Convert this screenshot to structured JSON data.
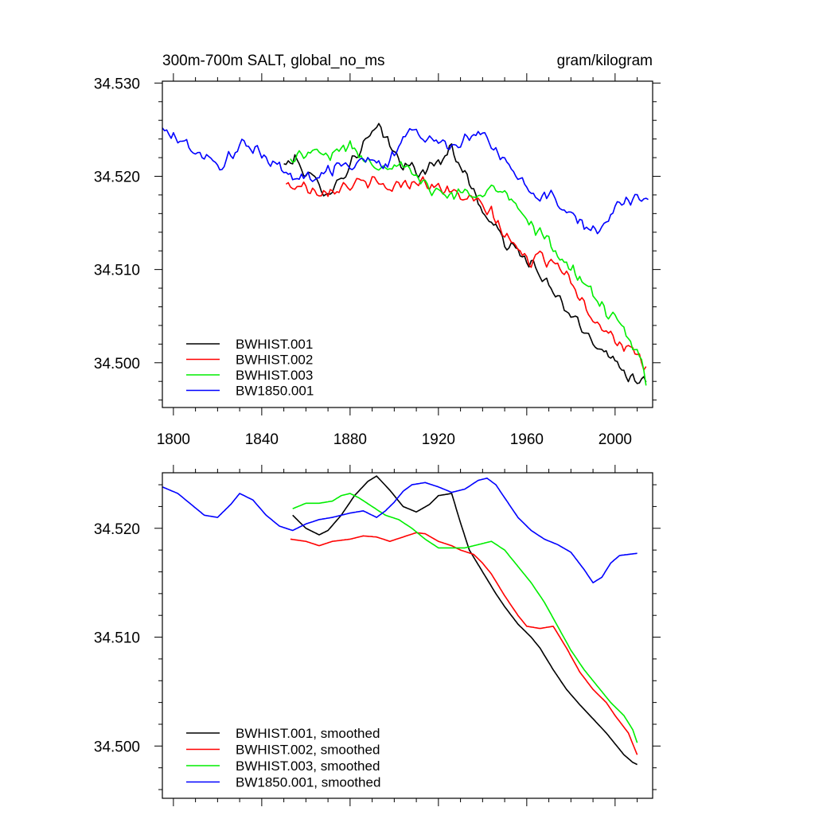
{
  "chart_data": [
    {
      "type": "line",
      "title": "300m-700m SALT, global_no_ms",
      "units": "gram/kilogram",
      "xlim": [
        1795,
        2017
      ],
      "ylim": [
        34.4952,
        34.5302
      ],
      "x_ticks": [
        1800,
        1840,
        1880,
        1920,
        1960,
        2000
      ],
      "x_tick_labels": [
        "1800",
        "1840",
        "1880",
        "1920",
        "1960",
        "2000"
      ],
      "y_ticks": [
        34.5,
        34.51,
        34.52,
        34.53
      ],
      "y_tick_labels": [
        "34.500",
        "34.510",
        "34.520",
        "34.530"
      ],
      "legend_position": "bottom-left",
      "noise_amplitude": 0.0009,
      "series": [
        {
          "name": "BWHIST.001",
          "color": "#000000",
          "x": [
            1850,
            1855,
            1860,
            1866,
            1872,
            1878,
            1884,
            1890,
            1894,
            1900,
            1906,
            1912,
            1916,
            1922,
            1926,
            1932,
            1938,
            1944,
            1950,
            1956,
            1962,
            1966,
            1972,
            1978,
            1984,
            1990,
            1996,
            2000,
            2006,
            2010,
            2014
          ],
          "y": [
            34.5212,
            34.5218,
            34.5205,
            34.5188,
            34.5186,
            34.5205,
            34.5228,
            34.5245,
            34.525,
            34.5224,
            34.521,
            34.5204,
            34.5208,
            34.522,
            34.5232,
            34.5203,
            34.5172,
            34.515,
            34.513,
            34.5118,
            34.5108,
            34.5092,
            34.5075,
            34.5058,
            34.5038,
            34.5025,
            34.5012,
            34.5,
            34.4988,
            34.4983,
            34.4983
          ]
        },
        {
          "name": "BWHIST.002",
          "color": "#ff0000",
          "x": [
            1851,
            1858,
            1866,
            1874,
            1882,
            1890,
            1898,
            1904,
            1910,
            1914,
            1920,
            1926,
            1932,
            1938,
            1944,
            1950,
            1956,
            1962,
            1968,
            1974,
            1980,
            1986,
            1990,
            1996,
            2002,
            2008,
            2014
          ],
          "y": [
            34.519,
            34.519,
            34.5185,
            34.5188,
            34.5192,
            34.5192,
            34.5188,
            34.5192,
            34.5196,
            34.5194,
            34.5188,
            34.5182,
            34.5178,
            34.517,
            34.516,
            34.5138,
            34.512,
            34.511,
            34.5112,
            34.5108,
            34.509,
            34.5062,
            34.505,
            34.5035,
            34.5022,
            34.501,
            34.4992
          ]
        },
        {
          "name": "BWHIST.003",
          "color": "#00ee00",
          "x": [
            1853,
            1858,
            1864,
            1870,
            1876,
            1880,
            1886,
            1892,
            1898,
            1904,
            1910,
            1916,
            1922,
            1928,
            1934,
            1940,
            1944,
            1950,
            1956,
            1962,
            1968,
            1974,
            1980,
            1986,
            1992,
            1998,
            2004,
            2008,
            2012,
            2014
          ],
          "y": [
            34.5217,
            34.5223,
            34.5225,
            34.5222,
            34.523,
            34.5232,
            34.522,
            34.5212,
            34.5215,
            34.5208,
            34.5198,
            34.5188,
            34.5182,
            34.518,
            34.5182,
            34.5186,
            34.5187,
            34.518,
            34.5165,
            34.515,
            34.5135,
            34.5118,
            34.51,
            34.5083,
            34.5068,
            34.505,
            34.5033,
            34.5018,
            34.5,
            34.4975
          ]
        },
        {
          "name": "BW1850.001",
          "color": "#0000ff",
          "x": [
            1795,
            1800,
            1805,
            1810,
            1815,
            1820,
            1825,
            1830,
            1835,
            1840,
            1845,
            1850,
            1855,
            1860,
            1865,
            1870,
            1875,
            1880,
            1885,
            1890,
            1895,
            1900,
            1905,
            1910,
            1915,
            1920,
            1925,
            1930,
            1935,
            1940,
            1945,
            1950,
            1955,
            1960,
            1965,
            1970,
            1975,
            1980,
            1985,
            1990,
            1995,
            2000,
            2005,
            2010,
            2015
          ],
          "y": [
            34.525,
            34.5242,
            34.5236,
            34.5226,
            34.5218,
            34.521,
            34.522,
            34.5232,
            34.523,
            34.5224,
            34.5216,
            34.5206,
            34.5196,
            34.52,
            34.5202,
            34.5206,
            34.5212,
            34.5212,
            34.5216,
            34.522,
            34.5206,
            34.5224,
            34.5246,
            34.5245,
            34.5242,
            34.5236,
            34.5232,
            34.5238,
            34.5247,
            34.5244,
            34.5232,
            34.5214,
            34.52,
            34.5188,
            34.518,
            34.5178,
            34.517,
            34.5162,
            34.515,
            34.514,
            34.515,
            34.5168,
            34.5174,
            34.5177,
            34.518
          ]
        }
      ]
    },
    {
      "type": "line",
      "xlim": [
        1795,
        2017
      ],
      "ylim": [
        34.4952,
        34.5251
      ],
      "x_ticks": [
        1800,
        1840,
        1880,
        1920,
        1960,
        2000
      ],
      "y_ticks": [
        34.5,
        34.51,
        34.52
      ],
      "y_tick_labels": [
        "34.500",
        "34.510",
        "34.520"
      ],
      "legend_position": "bottom-left",
      "noise_amplitude": 0,
      "series": [
        {
          "name": "BWHIST.001, smoothed",
          "color": "#000000",
          "x": [
            1854,
            1860,
            1866,
            1870,
            1876,
            1882,
            1888,
            1892,
            1898,
            1904,
            1910,
            1916,
            1920,
            1926,
            1930,
            1934,
            1940,
            1946,
            1950,
            1956,
            1962,
            1966,
            1972,
            1978,
            1984,
            1990,
            1996,
            2000,
            2004,
            2008,
            2010
          ],
          "y": [
            34.5212,
            34.52,
            34.5194,
            34.5198,
            34.5212,
            34.523,
            34.5243,
            34.5248,
            34.5235,
            34.522,
            34.5215,
            34.5222,
            34.523,
            34.5232,
            34.5205,
            34.518,
            34.516,
            34.514,
            34.5128,
            34.5112,
            34.51,
            34.509,
            34.507,
            34.5052,
            34.5038,
            34.5025,
            34.5012,
            34.5002,
            34.4992,
            34.4985,
            34.4983
          ]
        },
        {
          "name": "BWHIST.002, smoothed",
          "color": "#ff0000",
          "x": [
            1853,
            1860,
            1866,
            1872,
            1880,
            1886,
            1892,
            1898,
            1904,
            1910,
            1914,
            1920,
            1926,
            1930,
            1936,
            1940,
            1944,
            1950,
            1956,
            1960,
            1966,
            1972,
            1978,
            1984,
            1990,
            1996,
            2000,
            2006,
            2010
          ],
          "y": [
            34.519,
            34.5188,
            34.5184,
            34.5188,
            34.519,
            34.5193,
            34.5192,
            34.5188,
            34.5192,
            34.5196,
            34.5195,
            34.5188,
            34.5184,
            34.518,
            34.5176,
            34.5168,
            34.5158,
            34.5138,
            34.512,
            34.511,
            34.5108,
            34.511,
            34.509,
            34.5068,
            34.5052,
            34.504,
            34.5028,
            34.5012,
            34.4992
          ]
        },
        {
          "name": "BWHIST.003, smoothed",
          "color": "#00ee00",
          "x": [
            1854,
            1860,
            1866,
            1872,
            1876,
            1880,
            1884,
            1890,
            1896,
            1902,
            1908,
            1914,
            1920,
            1926,
            1932,
            1938,
            1944,
            1950,
            1956,
            1962,
            1968,
            1974,
            1980,
            1986,
            1992,
            1998,
            2004,
            2008,
            2010
          ],
          "y": [
            34.5218,
            34.5223,
            34.5223,
            34.5225,
            34.523,
            34.5232,
            34.5228,
            34.522,
            34.5212,
            34.5208,
            34.52,
            34.519,
            34.5182,
            34.5182,
            34.5182,
            34.5185,
            34.5188,
            34.518,
            34.5165,
            34.515,
            34.5132,
            34.511,
            34.5088,
            34.507,
            34.5055,
            34.504,
            34.5028,
            34.5015,
            34.5003
          ]
        },
        {
          "name": "BW1850.001, smoothed",
          "color": "#0000ff",
          "x": [
            1795,
            1802,
            1808,
            1814,
            1820,
            1826,
            1830,
            1836,
            1842,
            1848,
            1854,
            1860,
            1866,
            1872,
            1880,
            1886,
            1892,
            1896,
            1900,
            1904,
            1908,
            1914,
            1920,
            1926,
            1932,
            1938,
            1942,
            1946,
            1950,
            1956,
            1962,
            1968,
            1974,
            1980,
            1986,
            1990,
            1994,
            1998,
            2002,
            2006,
            2010
          ],
          "y": [
            34.5238,
            34.5232,
            34.5222,
            34.5212,
            34.521,
            34.5222,
            34.5232,
            34.5226,
            34.5212,
            34.5202,
            34.5198,
            34.5204,
            34.5208,
            34.521,
            34.5214,
            34.5216,
            34.521,
            34.5216,
            34.5224,
            34.5234,
            34.524,
            34.5242,
            34.5238,
            34.5233,
            34.5236,
            34.5244,
            34.5246,
            34.524,
            34.5228,
            34.521,
            34.5198,
            34.519,
            34.5185,
            34.5178,
            34.5162,
            34.515,
            34.5155,
            34.5168,
            34.5175,
            34.5176,
            34.5177
          ]
        }
      ]
    }
  ]
}
